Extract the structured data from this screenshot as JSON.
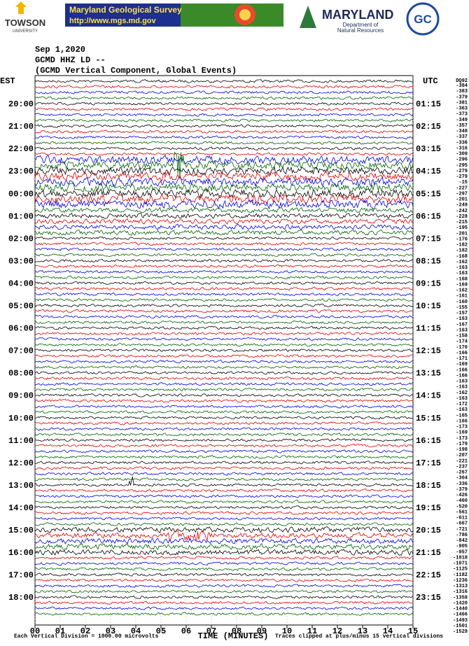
{
  "header": {
    "left_logo": "TOWSON",
    "left_logo_sub": "UNIVERSITY",
    "banner_title": "Maryland Geological Survey",
    "banner_url": "http://www.mgs.md.gov",
    "dnr_title": "MARYLAND",
    "dnr_sub1": "Department of",
    "dnr_sub2": "Natural Resources",
    "gc_logo": "GC"
  },
  "title_lines": [
    "Sep 1,2020",
    "GCMD HHZ LD --",
    "(GCMD Vertical Component, Global Events)"
  ],
  "left_zone": "EST",
  "right_zone": "UTC",
  "left_hours": [
    "20:00",
    "21:00",
    "22:00",
    "23:00",
    "00:00",
    "01:00",
    "02:00",
    "03:00",
    "04:00",
    "05:00",
    "06:00",
    "07:00",
    "08:00",
    "09:00",
    "10:00",
    "11:00",
    "12:00",
    "13:00",
    "14:00",
    "15:00",
    "16:00",
    "17:00",
    "18:00"
  ],
  "right_hours": [
    "01:15",
    "02:15",
    "03:15",
    "04:15",
    "05:15",
    "06:15",
    "07:15",
    "08:15",
    "09:15",
    "10:15",
    "11:15",
    "12:15",
    "13:15",
    "14:15",
    "15:15",
    "16:15",
    "17:15",
    "18:15",
    "19:15",
    "20:15",
    "21:15",
    "22:15",
    "23:15"
  ],
  "offsets_header": "DQ92",
  "offsets": [
    -384,
    -383,
    -379,
    -381,
    -363,
    -373,
    -349,
    -357,
    -348,
    -337,
    -336,
    -316,
    -309,
    -296,
    -295,
    -279,
    -279,
    -15,
    -227,
    -297,
    -201,
    -249,
    -242,
    -228,
    -215,
    -195,
    -201,
    -176,
    -182,
    -182,
    -168,
    -162,
    -163,
    -163,
    -168,
    -169,
    -162,
    -161,
    -160,
    -155,
    -157,
    -163,
    -167,
    -163,
    -158,
    -174,
    -170,
    -166,
    -171,
    -169,
    -166,
    -166,
    -163,
    -163,
    -162,
    -163,
    -172,
    -163,
    -165,
    -166,
    -173,
    -169,
    -173,
    -179,
    -198,
    -207,
    -221,
    -237,
    -267,
    -304,
    -336,
    -379,
    -426,
    -460,
    -520,
    -561,
    -611,
    -667,
    -721,
    -786,
    -842,
    -905,
    -957,
    -1018,
    -1071,
    -1125,
    -1182,
    -1236,
    -1313,
    -1316,
    -1358,
    -1420,
    -1440,
    -1466,
    -1493,
    -1501,
    -1529
  ],
  "x_ticks": [
    "00",
    "01",
    "02",
    "03",
    "04",
    "05",
    "06",
    "07",
    "08",
    "09",
    "10",
    "11",
    "12",
    "13",
    "14",
    "15"
  ],
  "x_label": "TIME (MINUTES)",
  "footer_left": "Each Vertical Division = 1000.00 microvolts",
  "footer_right": "Traces clipped at plus/minus 15 vertical divisions"
}
